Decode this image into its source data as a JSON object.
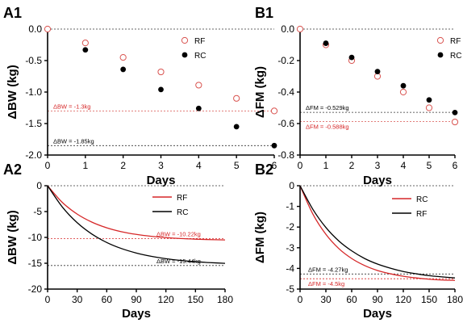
{
  "chart_data": [
    {
      "panel_label": "A1",
      "type": "scatter",
      "xlabel": "Days",
      "ylabel": "ΔBW (kg)",
      "xlim": [
        0,
        6
      ],
      "ylim": [
        -2.0,
        0.0
      ],
      "xticks": [
        0,
        1,
        2,
        3,
        4,
        5,
        6
      ],
      "yticks": [
        0.0,
        -0.5,
        -1.0,
        -1.5,
        -2.0
      ],
      "ytick_labels": [
        "0.0",
        "-0.5",
        "-1.0",
        "-1.5",
        "-2.0"
      ],
      "legend_position": "right",
      "series": [
        {
          "name": "RF",
          "marker": "open-circle",
          "color": "#d9534f",
          "x": [
            0,
            1,
            2,
            3,
            4,
            5,
            6
          ],
          "values": [
            0.0,
            -0.22,
            -0.45,
            -0.68,
            -0.89,
            -1.1,
            -1.3
          ]
        },
        {
          "name": "RC",
          "marker": "filled-circle",
          "color": "#000000",
          "x": [
            1,
            2,
            3,
            4,
            5,
            6
          ],
          "values": [
            -0.33,
            -0.64,
            -0.96,
            -1.26,
            -1.55,
            -1.85
          ]
        }
      ],
      "reference_lines": [
        {
          "y": 0.0,
          "color": "#000000",
          "label": ""
        },
        {
          "y": -1.3,
          "color": "#d9534f",
          "label": "ΔBW = -1.3kg"
        },
        {
          "y": -1.85,
          "color": "#000000",
          "label": "ΔBW = -1.85kg"
        }
      ]
    },
    {
      "panel_label": "B1",
      "type": "scatter",
      "xlabel": "Days",
      "ylabel": "ΔFM (kg)",
      "xlim": [
        0,
        6
      ],
      "ylim": [
        -0.8,
        0.0
      ],
      "xticks": [
        0,
        1,
        2,
        3,
        4,
        5,
        6
      ],
      "yticks": [
        0.0,
        -0.2,
        -0.4,
        -0.6,
        -0.8
      ],
      "ytick_labels": [
        "0.0",
        "-0.2",
        "-0.4",
        "-0.6",
        "-0.8"
      ],
      "legend_position": "right",
      "series": [
        {
          "name": "RF",
          "marker": "open-circle",
          "color": "#d9534f",
          "x": [
            0,
            1,
            2,
            3,
            4,
            5,
            6
          ],
          "values": [
            0.0,
            -0.1,
            -0.2,
            -0.3,
            -0.4,
            -0.5,
            -0.59
          ]
        },
        {
          "name": "RC",
          "marker": "filled-circle",
          "color": "#000000",
          "x": [
            1,
            2,
            3,
            4,
            5,
            6
          ],
          "values": [
            -0.09,
            -0.18,
            -0.27,
            -0.36,
            -0.45,
            -0.53
          ]
        }
      ],
      "reference_lines": [
        {
          "y": 0.0,
          "color": "#000000",
          "label": ""
        },
        {
          "y": -0.529,
          "color": "#000000",
          "label": "ΔFM = -0.529kg"
        },
        {
          "y": -0.588,
          "color": "#d9534f",
          "label": "ΔFM = -0.588kg"
        }
      ]
    },
    {
      "panel_label": "A2",
      "type": "line",
      "xlabel": "Days",
      "ylabel": "ΔBW (kg)",
      "xlim": [
        0,
        180
      ],
      "ylim": [
        -20,
        0
      ],
      "xticks": [
        0,
        30,
        60,
        90,
        120,
        150,
        180
      ],
      "yticks": [
        0,
        -5,
        -10,
        -15,
        -20
      ],
      "ytick_labels": [
        "0",
        "-5",
        "-10",
        "-15",
        "-20"
      ],
      "legend_position": "top-right",
      "series": [
        {
          "name": "RF",
          "color": "#d62728",
          "x": [
            0,
            15,
            30,
            45,
            60,
            75,
            90,
            105,
            120,
            135,
            150,
            165,
            180
          ],
          "values": [
            0,
            -3.24,
            -5.49,
            -7.05,
            -8.14,
            -8.9,
            -9.42,
            -9.79,
            -10.04,
            -10.22,
            -10.34,
            -10.43,
            -10.49
          ]
        },
        {
          "name": "RC",
          "color": "#000000",
          "x": [
            0,
            15,
            30,
            45,
            60,
            75,
            90,
            105,
            120,
            135,
            150,
            165,
            180
          ],
          "values": [
            0,
            -4.13,
            -7.15,
            -9.36,
            -10.98,
            -12.16,
            -13.02,
            -13.65,
            -14.12,
            -14.46,
            -14.7,
            -14.88,
            -15.02
          ]
        }
      ],
      "reference_lines": [
        {
          "y": 0,
          "color": "#000000",
          "label": ""
        },
        {
          "y": -10.22,
          "color": "#d62728",
          "label": "ΔBW = -10.22kg"
        },
        {
          "y": -15.44,
          "color": "#000000",
          "label": "ΔBW = -15.44kg"
        }
      ]
    },
    {
      "panel_label": "B2",
      "type": "line",
      "xlabel": "Days",
      "ylabel": "ΔFM (kg)",
      "xlim": [
        0,
        180
      ],
      "ylim": [
        -5,
        0
      ],
      "xticks": [
        0,
        30,
        60,
        90,
        120,
        150,
        180
      ],
      "yticks": [
        0,
        -1,
        -2,
        -3,
        -4,
        -5
      ],
      "ytick_labels": [
        "0",
        "-1",
        "-2",
        "-3",
        "-4",
        "-5"
      ],
      "legend_position": "top-right",
      "series": [
        {
          "name": "RC",
          "color": "#d62728",
          "x": [
            0,
            15,
            30,
            45,
            60,
            75,
            90,
            105,
            120,
            135,
            150,
            165,
            180
          ],
          "values": [
            0,
            -1.38,
            -2.35,
            -3.04,
            -3.52,
            -3.86,
            -4.1,
            -4.26,
            -4.38,
            -4.46,
            -4.52,
            -4.56,
            -4.58
          ]
        },
        {
          "name": "RF",
          "color": "#000000",
          "x": [
            0,
            15,
            30,
            45,
            60,
            75,
            90,
            105,
            120,
            135,
            150,
            165,
            180
          ],
          "values": [
            0,
            -1.15,
            -2.02,
            -2.67,
            -3.15,
            -3.52,
            -3.79,
            -3.99,
            -4.15,
            -4.26,
            -4.35,
            -4.41,
            -4.46
          ]
        }
      ],
      "reference_lines": [
        {
          "y": 0,
          "color": "#000000",
          "label": ""
        },
        {
          "y": -4.27,
          "color": "#000000",
          "label": "ΔFM = -4.27kg"
        },
        {
          "y": -4.5,
          "color": "#d62728",
          "label": "ΔFM = -4.5kg"
        }
      ]
    }
  ]
}
